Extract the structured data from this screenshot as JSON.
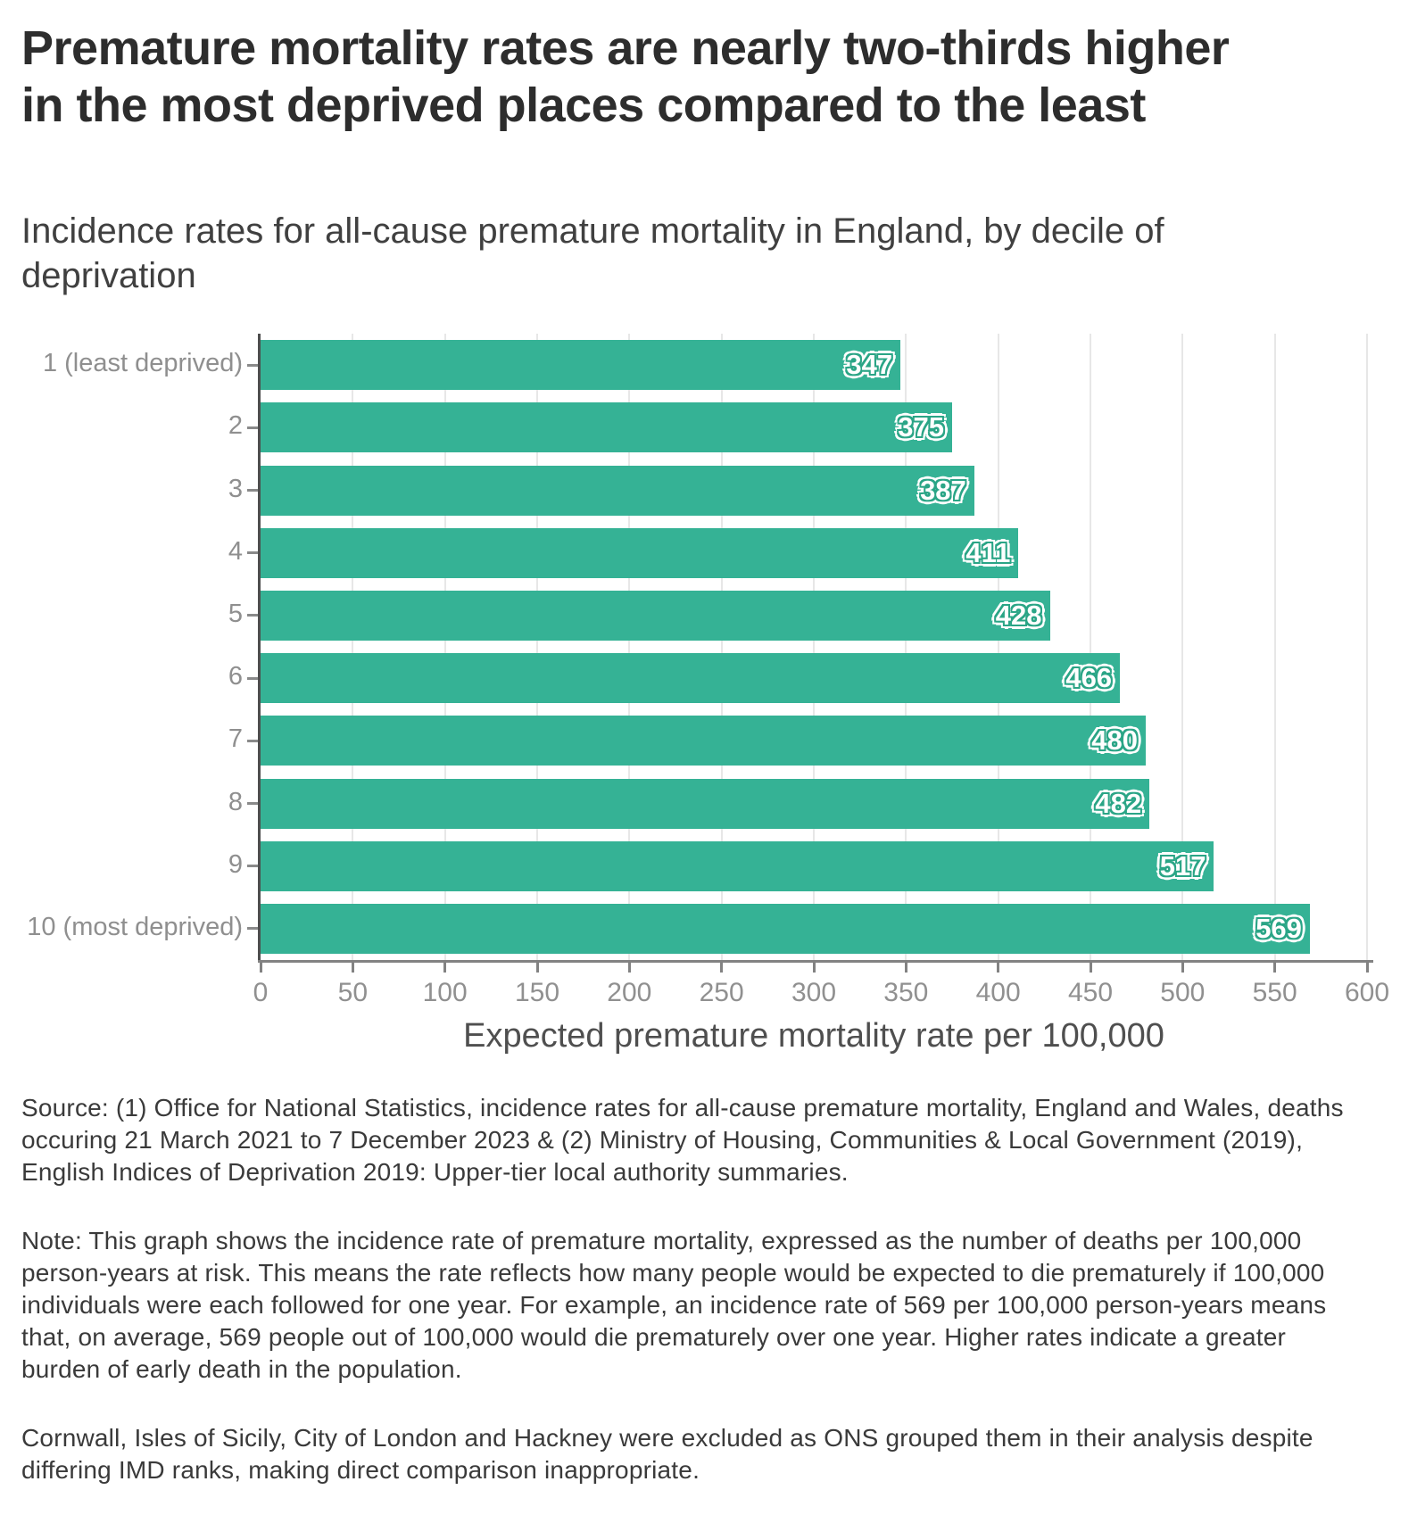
{
  "title": "Premature mortality rates are nearly two-thirds higher in the most deprived places compared to the least",
  "subtitle": "Incidence rates for all-cause premature mortality in England, by decile of deprivation",
  "chart_data": {
    "type": "bar",
    "orientation": "horizontal",
    "categories": [
      "1 (least deprived)",
      "2",
      "3",
      "4",
      "5",
      "6",
      "7",
      "8",
      "9",
      "10 (most deprived)"
    ],
    "values": [
      347,
      375,
      387,
      411,
      428,
      466,
      480,
      482,
      517,
      569
    ],
    "xlabel": "Expected premature mortality rate per 100,000",
    "ylabel": "",
    "xlim": [
      0,
      600
    ],
    "xticks": [
      0,
      50,
      100,
      150,
      200,
      250,
      300,
      350,
      400,
      450,
      500,
      550,
      600
    ],
    "grid": "vertical-only",
    "legend": "none",
    "bar_color": "#35b295",
    "bar_label_color": "#ffffff",
    "bar_label_stroke_color": "#2aa586"
  },
  "footer": {
    "source": "Source: (1) Office for National Statistics, incidence rates for all-cause premature mortality, England and Wales, deaths occuring 21 March 2021 to 7 December 2023 & (2) Ministry of Housing, Communities & Local Government (2019), English Indices of Deprivation 2019: Upper-tier local authority summaries.",
    "note": "Note: This graph shows the incidence rate of premature mortality, expressed as the number of deaths per 100,000 person-years at risk. This means the rate reflects how many people would be expected to die prematurely if 100,000 individuals were each followed for one year. For example, an incidence rate of 569 per 100,000 person-years means that, on average, 569 people out of 100,000 would die prematurely over one year. Higher rates indicate a greater burden of early death in the population.",
    "exclusion": "Cornwall, Isles of Sicily, City of London and Hackney were excluded as ONS grouped them in their analysis despite differing IMD ranks, making direct comparison inappropriate."
  },
  "colors": {
    "title": "#2d2d2d",
    "subtitle": "#404040",
    "footer_text": "#3a3a3a",
    "tick_label": "#909090",
    "gridline": "#e7e7e7",
    "y_axis_line": "#4d4d4d",
    "x_axis_line": "#828282",
    "axis_caption": "#4f4f4f"
  }
}
